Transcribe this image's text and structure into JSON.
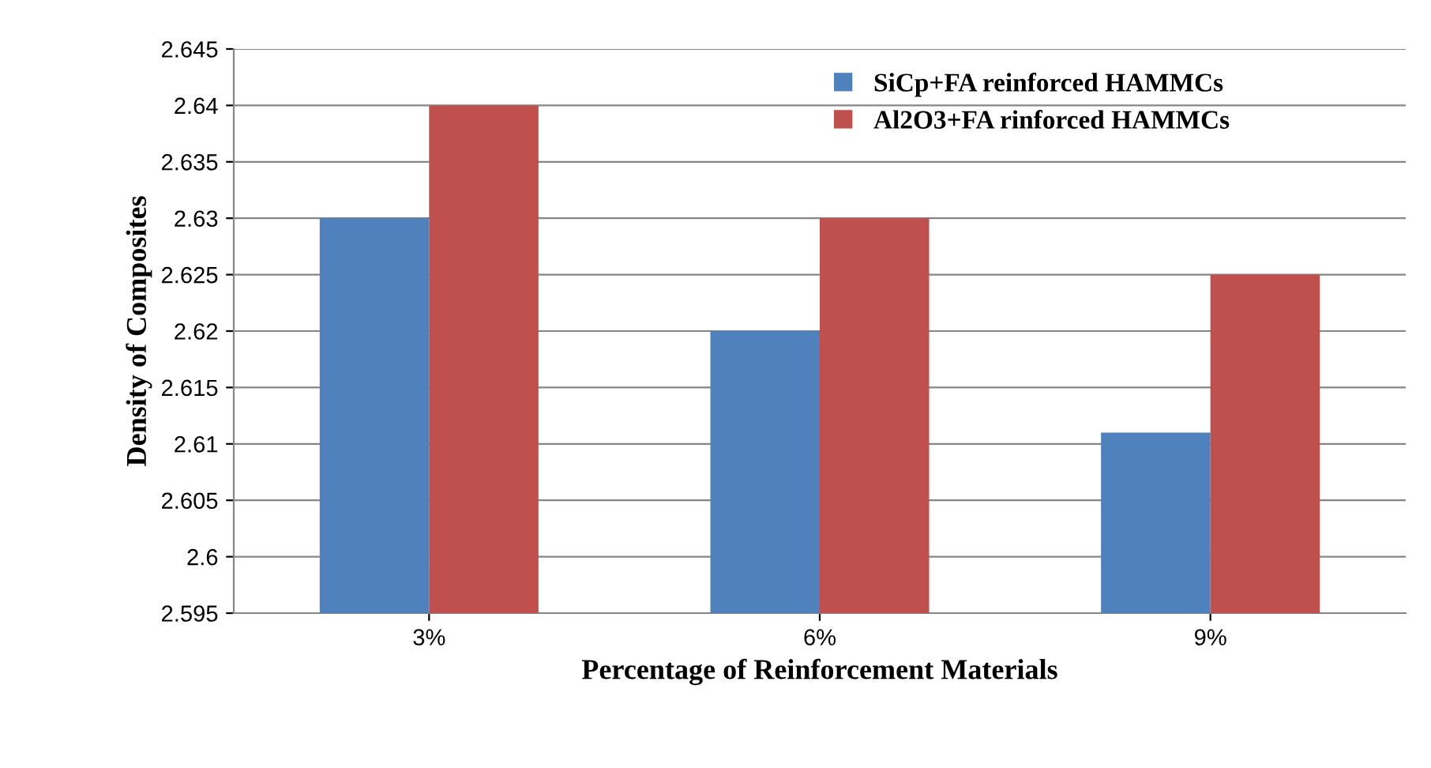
{
  "chart_data": {
    "type": "bar",
    "xlabel": "Percentage of Reinforcement Materials",
    "ylabel": "Density of Composites",
    "categories": [
      "3%",
      "6%",
      "9%"
    ],
    "series": [
      {
        "name": "SiCp+FA reinforced HAMMCs",
        "color": "#4f81bd",
        "values": [
          2.63,
          2.62,
          2.611
        ]
      },
      {
        "name": "Al2O3+FA rinforced HAMMCs",
        "color": "#c0504d",
        "values": [
          2.64,
          2.63,
          2.625
        ]
      }
    ],
    "ylim": [
      2.595,
      2.645
    ],
    "yticks": [
      2.595,
      2.6,
      2.605,
      2.61,
      2.615,
      2.62,
      2.625,
      2.63,
      2.635,
      2.64,
      2.645
    ],
    "grid": "y",
    "legend": "top right"
  }
}
